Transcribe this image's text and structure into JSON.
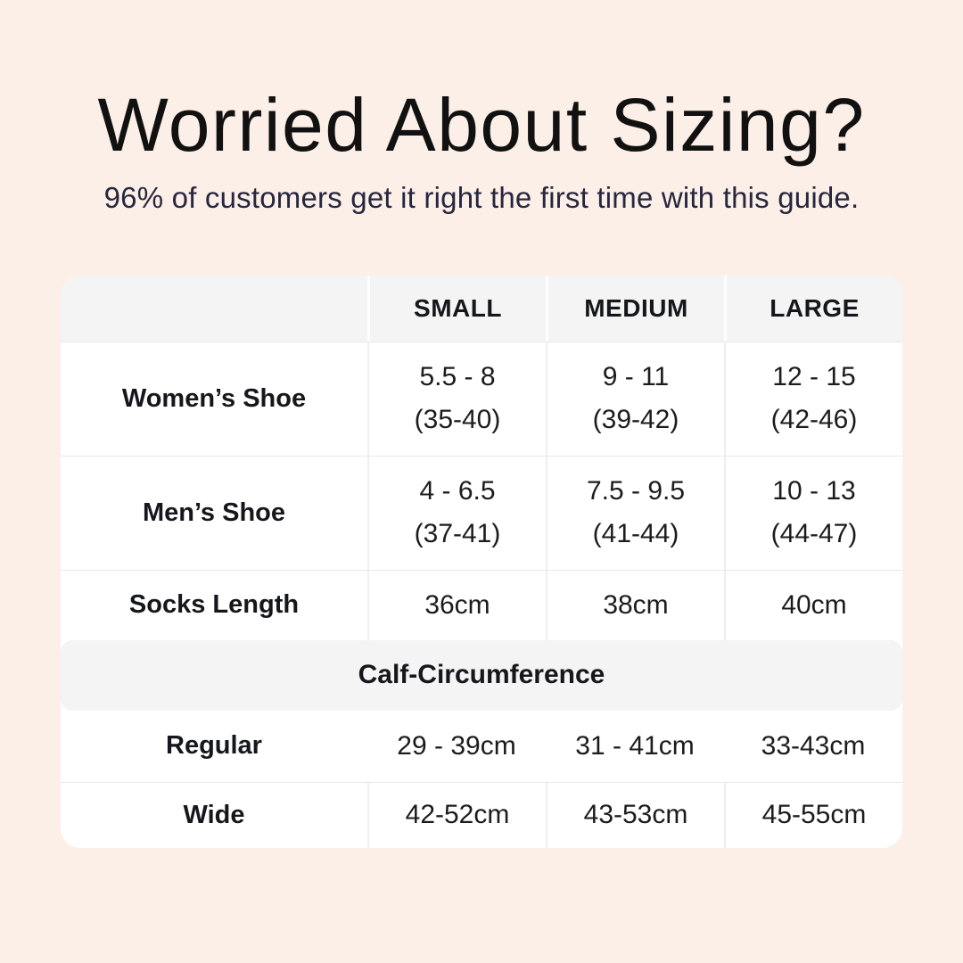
{
  "page": {
    "title": "Worried About Sizing?",
    "subtitle": "96% of customers get it right the first time with this guide."
  },
  "colors": {
    "page_background": "#fcefe7",
    "table_background": "#ffffff",
    "header_band": "#f4f4f4",
    "divider": "#e8e8e8",
    "title_text": "#111111",
    "subtitle_text": "#26263f",
    "table_text": "#1c1c1c"
  },
  "chart_data": {
    "type": "table",
    "title": "Worried About Sizing?",
    "subtitle": "96% of customers get it right the first time with this guide.",
    "columns": [
      "",
      "SMALL",
      "MEDIUM",
      "LARGE"
    ],
    "rows": [
      {
        "label": "Women’s Shoe",
        "cells": [
          {
            "l1": "5.5 - 8",
            "l2": "(35-40)"
          },
          {
            "l1": "9 - 11",
            "l2": "(39-42)"
          },
          {
            "l1": "12 - 15",
            "l2": "(42-46)"
          }
        ]
      },
      {
        "label": "Men’s Shoe",
        "cells": [
          {
            "l1": "4 - 6.5",
            "l2": "(37-41)"
          },
          {
            "l1": "7.5 - 9.5",
            "l2": "(41-44)"
          },
          {
            "l1": "10 - 13",
            "l2": "(44-47)"
          }
        ]
      },
      {
        "label": "Socks Length",
        "cells": [
          "36cm",
          "38cm",
          "40cm"
        ]
      }
    ],
    "section_header": "Calf-Circumference",
    "section_rows": [
      {
        "label": "Regular",
        "cells": [
          "29 - 39cm",
          "31 - 41cm",
          "33-43cm"
        ]
      },
      {
        "label": "Wide",
        "cells": [
          "42-52cm",
          "43-53cm",
          "45-55cm"
        ]
      }
    ]
  }
}
